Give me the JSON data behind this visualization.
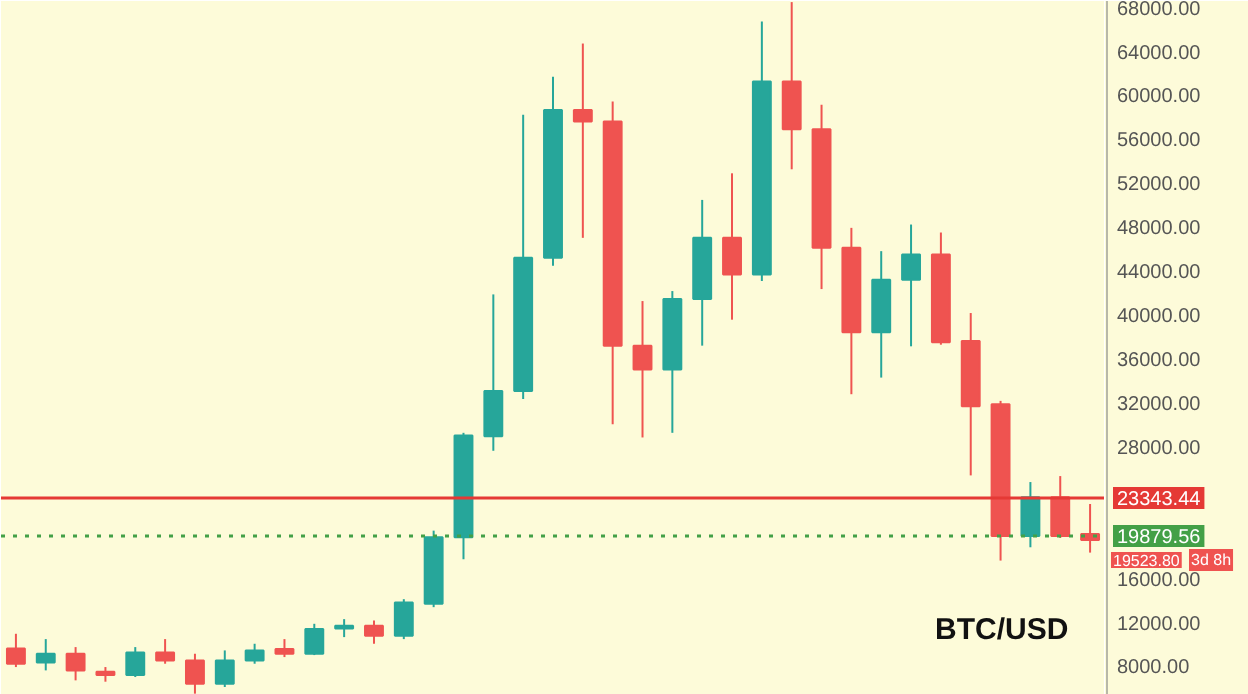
{
  "chart_data": {
    "type": "candlestick",
    "title": "BTC/USD",
    "categories": [
      null,
      null,
      null,
      null,
      null,
      null,
      null,
      null,
      null,
      null,
      null,
      null,
      null,
      null,
      null,
      null,
      null,
      null,
      null,
      null,
      null,
      null,
      null,
      null,
      null,
      null,
      null,
      null,
      null,
      null,
      null,
      null,
      null,
      null,
      null,
      null,
      null
    ],
    "ohlc": [
      [
        9642,
        10975,
        7945,
        8248
      ],
      [
        8369,
        10490,
        7642,
        9157
      ],
      [
        9157,
        9763,
        6733,
        7642
      ],
      [
        7521,
        7945,
        6612,
        7218
      ],
      [
        7218,
        9763,
        7036,
        9279
      ],
      [
        9279,
        10490,
        8248,
        8551
      ],
      [
        8551,
        9157,
        5521,
        6430
      ],
      [
        6430,
        9460,
        6127,
        8551
      ],
      [
        8551,
        10066,
        8248,
        9460
      ],
      [
        9581,
        10490,
        8854,
        9157
      ],
      [
        9157,
        11884,
        9036,
        11399
      ],
      [
        11460,
        12308,
        10672,
        11703
      ],
      [
        11703,
        12187,
        10066,
        10794
      ],
      [
        10794,
        14126,
        10490,
        13823
      ],
      [
        13702,
        20368,
        13399,
        19762
      ],
      [
        19762,
        29276,
        17762,
        29034
      ],
      [
        28973,
        41881,
        27640,
        33094
      ],
      [
        33094,
        58243,
        32367,
        45214
      ],
      [
        45214,
        61697,
        44487,
        58667
      ],
      [
        58667,
        64727,
        47032,
        57637
      ],
      [
        57637,
        59455,
        30065,
        37215
      ],
      [
        37215,
        41275,
        28853,
        35033
      ],
      [
        35033,
        42184,
        29276,
        41457
      ],
      [
        41457,
        50486,
        37215,
        47032
      ],
      [
        47032,
        52910,
        39578,
        43700
      ],
      [
        43700,
        66727,
        43093,
        61273
      ],
      [
        61273,
        68500,
        53274,
        56910
      ],
      [
        56910,
        59152,
        42366,
        46123
      ],
      [
        46123,
        47941,
        32791,
        38427
      ],
      [
        38427,
        45820,
        34306,
        43215
      ],
      [
        43215,
        48244,
        37154,
        45517
      ],
      [
        45517,
        47517,
        37300,
        37518
      ],
      [
        37639,
        40184,
        25398,
        31700
      ],
      [
        31882,
        32185,
        17641,
        19882
      ],
      [
        19882,
        24792,
        18853,
        23398
      ],
      [
        23398,
        25337,
        19700,
        19882
      ],
      [
        20065,
        22792,
        18368,
        19523.8
      ]
    ],
    "colors": [
      "#ef5350",
      "#26a69a",
      "#ef5350",
      "#ef5350",
      "#26a69a",
      "#ef5350",
      "#ef5350",
      "#26a69a",
      "#26a69a",
      "#ef5350",
      "#26a69a",
      "#26a69a",
      "#ef5350",
      "#26a69a",
      "#26a69a",
      "#26a69a",
      "#26a69a",
      "#26a69a",
      "#26a69a",
      "#ef5350",
      "#ef5350",
      "#ef5350",
      "#26a69a",
      "#26a69a",
      "#ef5350",
      "#26a69a",
      "#ef5350",
      "#ef5350",
      "#ef5350",
      "#26a69a",
      "#26a69a",
      "#ef5350",
      "#ef5350",
      "#ef5350",
      "#26a69a",
      "#ef5350",
      "#ef5350"
    ],
    "ylim": [
      5400,
      68600
    ],
    "yticks": [
      {
        "value": 8000,
        "label": "8000.00"
      },
      {
        "value": 12000,
        "label": "12000.00"
      },
      {
        "value": 16000,
        "label": "16000.00"
      },
      {
        "value": 28000,
        "label": "28000.00"
      },
      {
        "value": 32000,
        "label": "32000.00"
      },
      {
        "value": 36000,
        "label": "36000.00"
      },
      {
        "value": 40000,
        "label": "40000.00"
      },
      {
        "value": 44000,
        "label": "44000.00"
      },
      {
        "value": 48000,
        "label": "48000.00"
      },
      {
        "value": 52000,
        "label": "52000.00"
      },
      {
        "value": 56000,
        "label": "56000.00"
      },
      {
        "value": 60000,
        "label": "60000.00"
      },
      {
        "value": 64000,
        "label": "64000.00"
      },
      {
        "value": 68000,
        "label": "68000.00"
      }
    ],
    "ref_lines": [
      {
        "axis": "y",
        "value": 23343.44,
        "label": "23343.44",
        "color": "#e53935",
        "line_style": "solid"
      },
      {
        "axis": "y",
        "value": 19879.56,
        "label": "19879.56",
        "color": "#43a047",
        "line_style": "dotted"
      }
    ],
    "annotations": [
      "19523.80",
      "3d 8h"
    ],
    "tick_labels": "y",
    "grid": false
  }
}
